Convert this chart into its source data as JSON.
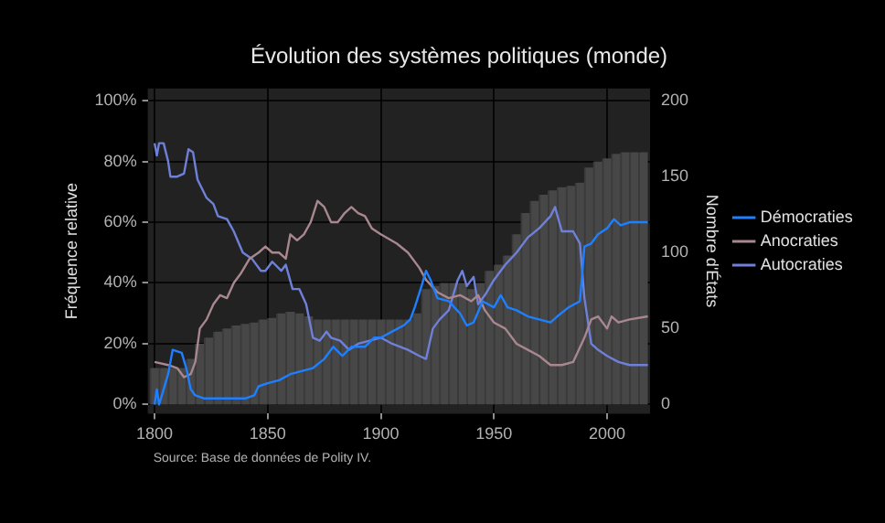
{
  "chart_data": {
    "type": "line",
    "title": "Évolution des systèmes politiques (monde)",
    "ylabel": "Fréquence relative",
    "y2label": "Nombre d'États",
    "annotations": [
      "Source: Base de données de Polity IV."
    ],
    "xlim": [
      1797,
      2019
    ],
    "xticks": [
      1800,
      1850,
      1900,
      1950,
      2000
    ],
    "ylim": [
      -3,
      104
    ],
    "yticks": [
      {
        "value": 0,
        "label": "0%"
      },
      {
        "value": 20,
        "label": "20%"
      },
      {
        "value": 40,
        "label": "40%"
      },
      {
        "value": 60,
        "label": "60%"
      },
      {
        "value": 80,
        "label": "80%"
      },
      {
        "value": 100,
        "label": "100%"
      }
    ],
    "y2lim": [
      -6,
      208
    ],
    "y2ticks": [
      0,
      50,
      100,
      150,
      200
    ],
    "grid": true,
    "legend": "right",
    "line_style": "solid",
    "marker": "none",
    "series": [
      {
        "type": "bar",
        "axis": "y2",
        "color": "#474747",
        "x": [
          1800,
          1804,
          1808,
          1812,
          1816,
          1820,
          1824,
          1828,
          1832,
          1836,
          1840,
          1844,
          1848,
          1852,
          1856,
          1860,
          1864,
          1868,
          1872,
          1876,
          1880,
          1884,
          1888,
          1892,
          1896,
          1900,
          1904,
          1908,
          1912,
          1916,
          1920,
          1924,
          1928,
          1932,
          1936,
          1940,
          1944,
          1948,
          1952,
          1956,
          1960,
          1964,
          1968,
          1972,
          1976,
          1980,
          1984,
          1988,
          1992,
          1996,
          2000,
          2004,
          2008,
          2012,
          2016
        ],
        "values": [
          24,
          24,
          24,
          24,
          30,
          40,
          44,
          48,
          50,
          52,
          53,
          54,
          56,
          57,
          60,
          61,
          60,
          58,
          56,
          56,
          56,
          56,
          56,
          56,
          56,
          56,
          56,
          56,
          56,
          60,
          76,
          78,
          80,
          80,
          80,
          76,
          80,
          88,
          92,
          98,
          112,
          126,
          134,
          138,
          141,
          143,
          144,
          146,
          156,
          160,
          162,
          165,
          166,
          166,
          166
        ]
      },
      {
        "name": "Démocraties",
        "color": "#1e7fff",
        "x": [
          1800,
          1801,
          1802,
          1804,
          1806,
          1808,
          1812,
          1814,
          1816,
          1818,
          1822,
          1830,
          1840,
          1844,
          1846,
          1850,
          1855,
          1860,
          1865,
          1870,
          1875,
          1879,
          1883,
          1887,
          1893,
          1897,
          1900,
          1905,
          1910,
          1913,
          1915,
          1918,
          1920,
          1922,
          1925,
          1930,
          1935,
          1938,
          1941,
          1945,
          1950,
          1953,
          1956,
          1960,
          1965,
          1970,
          1975,
          1978,
          1983,
          1988,
          1990,
          1993,
          1996,
          2000,
          2003,
          2006,
          2010,
          2018
        ],
        "values": [
          0,
          5,
          0,
          5,
          10,
          18,
          17,
          12,
          5,
          3,
          2,
          2,
          2,
          3,
          6,
          7,
          8,
          10,
          11,
          12,
          15,
          19,
          16,
          19,
          19,
          22,
          22,
          24,
          26,
          28,
          32,
          39,
          44,
          41,
          35,
          34,
          30,
          26,
          27,
          34,
          32,
          36,
          32,
          31,
          29,
          28,
          27,
          29,
          32,
          34,
          52,
          53,
          56,
          58,
          61,
          59,
          60,
          60
        ]
      },
      {
        "name": "Anocraties",
        "color": "#a8878f",
        "x": [
          1800,
          1806,
          1810,
          1813,
          1816,
          1818,
          1820,
          1823,
          1826,
          1829,
          1832,
          1835,
          1838,
          1842,
          1846,
          1849,
          1852,
          1855,
          1858,
          1860,
          1863,
          1866,
          1869,
          1872,
          1875,
          1878,
          1881,
          1884,
          1887,
          1890,
          1893,
          1896,
          1900,
          1907,
          1912,
          1917,
          1920,
          1925,
          1930,
          1935,
          1940,
          1943,
          1946,
          1950,
          1955,
          1960,
          1965,
          1970,
          1975,
          1980,
          1985,
          1990,
          1993,
          1996,
          2000,
          2002,
          2005,
          2010,
          2018
        ],
        "values": [
          14,
          13,
          12,
          9,
          10,
          14,
          25,
          28,
          33,
          36,
          35,
          40,
          43,
          48,
          50,
          52,
          50,
          50,
          48,
          56,
          54,
          56,
          60,
          67,
          65,
          60,
          60,
          63,
          65,
          63,
          62,
          58,
          56,
          53,
          50,
          45,
          41,
          37,
          35,
          36,
          34,
          36,
          31,
          27,
          25,
          20,
          18,
          16,
          13,
          13,
          14,
          22,
          28,
          29,
          25,
          29,
          27,
          28,
          29
        ]
      },
      {
        "name": "Autocraties",
        "color": "#6f80d8",
        "x": [
          1800,
          1801,
          1802,
          1804,
          1806,
          1807,
          1810,
          1813,
          1815,
          1817,
          1819,
          1821,
          1823,
          1826,
          1828,
          1832,
          1835,
          1839,
          1843,
          1847,
          1849,
          1852,
          1856,
          1858,
          1861,
          1864,
          1867,
          1870,
          1873,
          1876,
          1878,
          1882,
          1886,
          1890,
          1895,
          1900,
          1905,
          1912,
          1917,
          1920,
          1923,
          1926,
          1930,
          1934,
          1936,
          1938,
          1941,
          1943,
          1946,
          1950,
          1955,
          1960,
          1965,
          1970,
          1975,
          1977,
          1980,
          1985,
          1988,
          1990,
          1993,
          1996,
          2000,
          2005,
          2010,
          2018
        ],
        "values": [
          86,
          82,
          86,
          86,
          80,
          75,
          75,
          76,
          84,
          83,
          74,
          71,
          68,
          66,
          62,
          61,
          57,
          50,
          48,
          44,
          44,
          47,
          44,
          46,
          38,
          38,
          33,
          22,
          21,
          24,
          22,
          21,
          18,
          20,
          21,
          22,
          20,
          18,
          16,
          15,
          25,
          28,
          31,
          41,
          44,
          39,
          42,
          33,
          36,
          41,
          46,
          50,
          55,
          58,
          62,
          65,
          57,
          57,
          53,
          35,
          20,
          18,
          16,
          14,
          13,
          13
        ]
      }
    ]
  }
}
